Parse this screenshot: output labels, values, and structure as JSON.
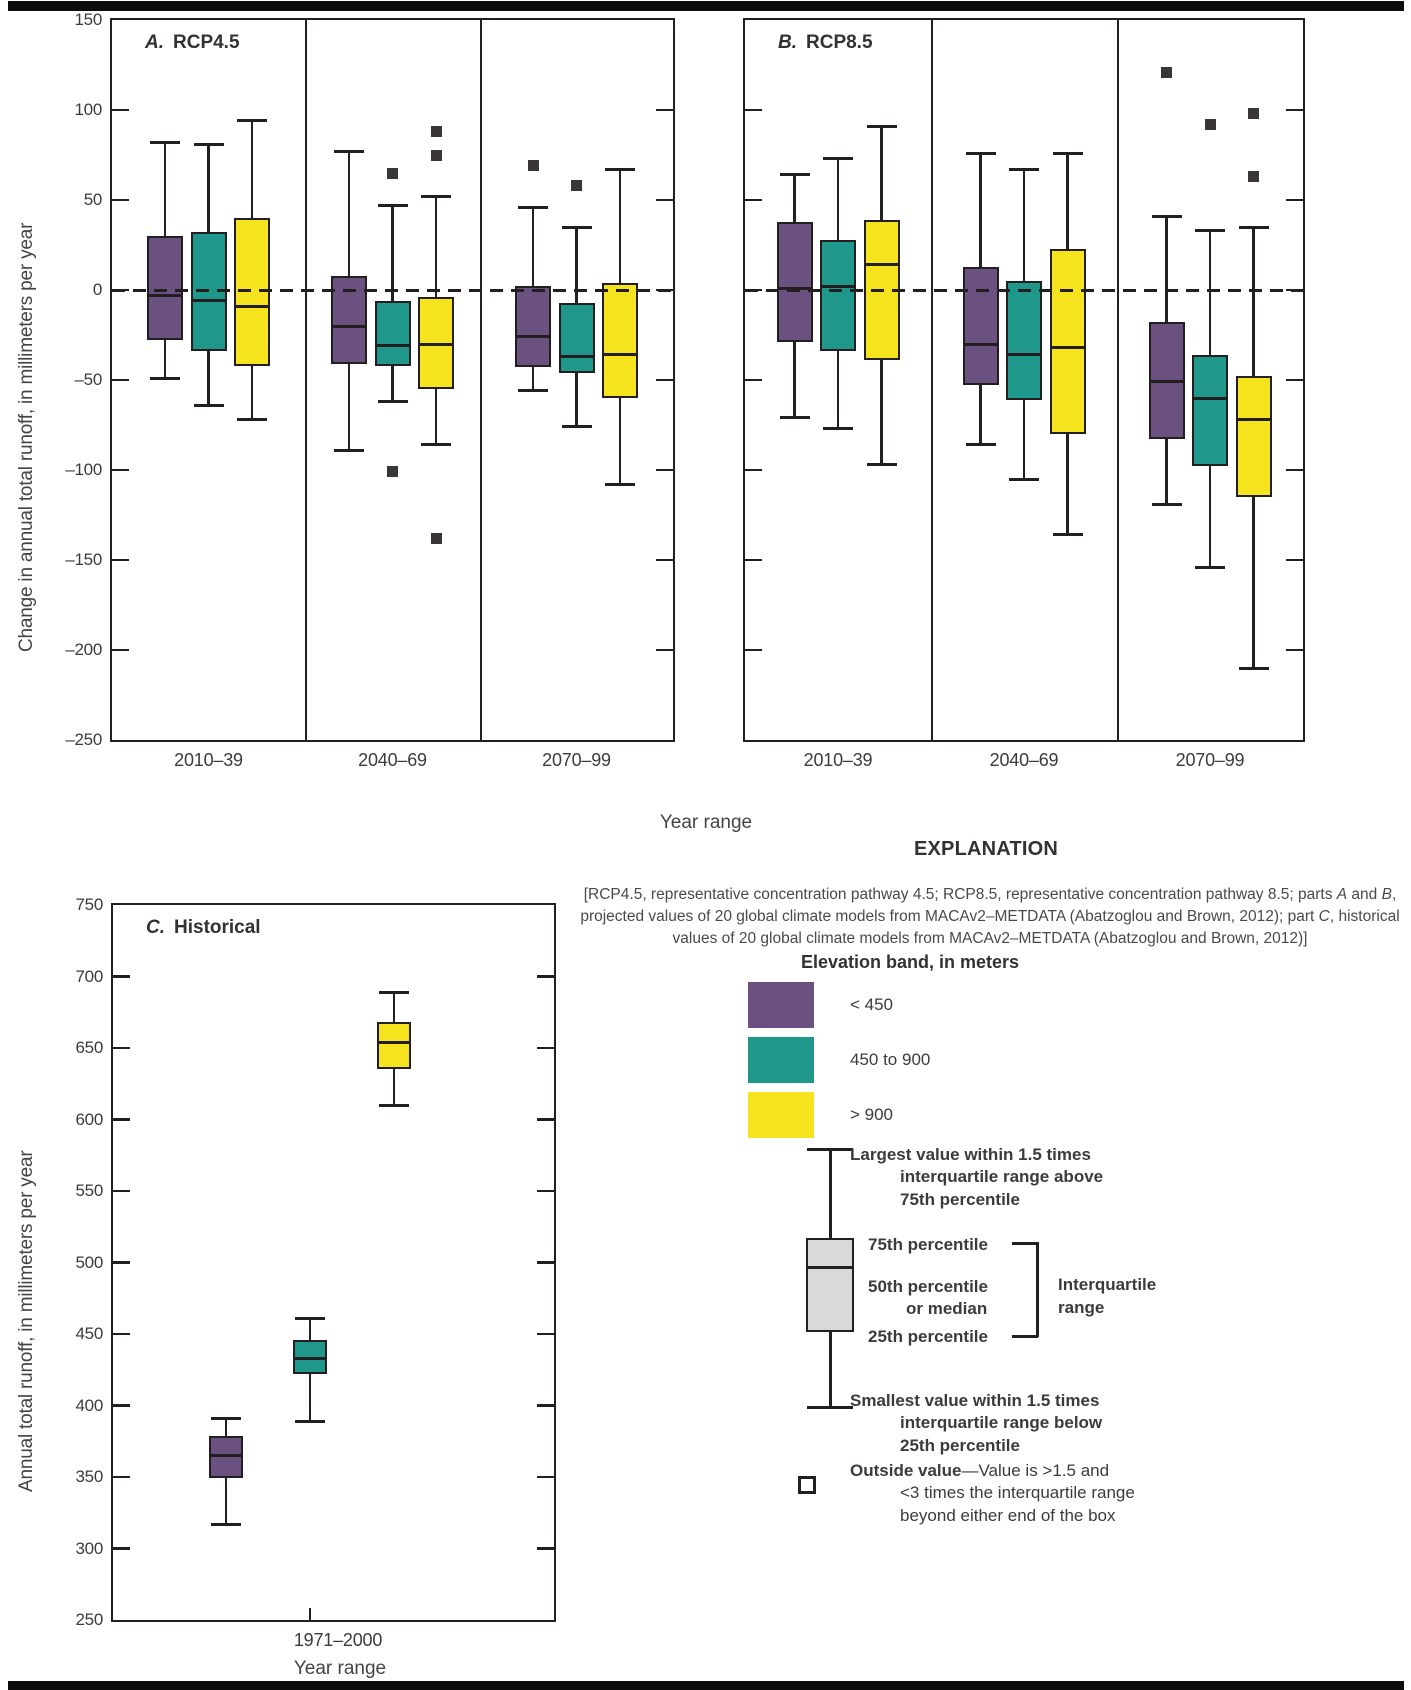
{
  "colors": {
    "purple": "#6b517f",
    "teal": "#1f988b",
    "yellow": "#f5e41d",
    "ink": "#231f20",
    "outlier": "#3a3637",
    "legend_box_fill": "#d8d9da"
  },
  "axes": {
    "top_y_label": "Change in annual total runoff, in millimeters per year",
    "bottom_y_label": "Annual total runoff, in millimeters per year",
    "top_x_label": "Year range",
    "bottom_x_label": "Year range"
  },
  "chart_data": [
    {
      "id": "A",
      "type": "boxplot",
      "title_letter": "A.",
      "title_text": "RCP4.5",
      "categories": [
        "2010–39",
        "2040–69",
        "2070–99"
      ],
      "ylim": [
        -250,
        150
      ],
      "y_tick_values": [
        150,
        100,
        50,
        0,
        -50,
        -100,
        -150,
        -200,
        -250
      ],
      "y_tick_labels": [
        "150",
        "100",
        "50",
        "0",
        "–50",
        "–100",
        "–150",
        "–200",
        "–250"
      ],
      "show_y_labels": true,
      "zero_line": true,
      "series": [
        {
          "name": "< 450",
          "color": "purple",
          "boxes": [
            {
              "low": -49,
              "q1": -28,
              "median": -3,
              "q3": 30,
              "high": 82,
              "outliers": []
            },
            {
              "low": -89,
              "q1": -41,
              "median": -20,
              "q3": 8,
              "high": 77,
              "outliers": []
            },
            {
              "low": -56,
              "q1": -43,
              "median": -26,
              "q3": 2,
              "high": 46,
              "outliers": [
                69
              ]
            }
          ]
        },
        {
          "name": "450 to 900",
          "color": "teal",
          "boxes": [
            {
              "low": -64,
              "q1": -34,
              "median": -6,
              "q3": 32,
              "high": 81,
              "outliers": []
            },
            {
              "low": -62,
              "q1": -42,
              "median": -31,
              "q3": -6,
              "high": 47,
              "outliers": [
                65,
                -101
              ]
            },
            {
              "low": -76,
              "q1": -46,
              "median": -37,
              "q3": -7,
              "high": 35,
              "outliers": [
                58
              ]
            }
          ]
        },
        {
          "name": "> 900",
          "color": "yellow",
          "boxes": [
            {
              "low": -72,
              "q1": -42,
              "median": -9,
              "q3": 40,
              "high": 94,
              "outliers": []
            },
            {
              "low": -86,
              "q1": -55,
              "median": -30,
              "q3": -4,
              "high": 52,
              "outliers": [
                88,
                75,
                -138
              ]
            },
            {
              "low": -108,
              "q1": -60,
              "median": -36,
              "q3": 4,
              "high": 67,
              "outliers": []
            }
          ]
        }
      ]
    },
    {
      "id": "B",
      "type": "boxplot",
      "title_letter": "B.",
      "title_text": "RCP8.5",
      "categories": [
        "2010–39",
        "2040–69",
        "2070–99"
      ],
      "ylim": [
        -250,
        150
      ],
      "y_tick_values": [
        150,
        100,
        50,
        0,
        -50,
        -100,
        -150,
        -200,
        -250
      ],
      "y_tick_labels": [
        "150",
        "100",
        "50",
        "0",
        "–50",
        "–100",
        "–150",
        "–200",
        "–250"
      ],
      "show_y_labels": false,
      "zero_line": true,
      "series": [
        {
          "name": "< 450",
          "color": "purple",
          "boxes": [
            {
              "low": -71,
              "q1": -29,
              "median": 1,
              "q3": 38,
              "high": 64,
              "outliers": []
            },
            {
              "low": -86,
              "q1": -53,
              "median": -30,
              "q3": 13,
              "high": 76,
              "outliers": []
            },
            {
              "low": -119,
              "q1": -83,
              "median": -51,
              "q3": -18,
              "high": 41,
              "outliers": [
                121
              ]
            }
          ]
        },
        {
          "name": "450 to 900",
          "color": "teal",
          "boxes": [
            {
              "low": -77,
              "q1": -34,
              "median": 2,
              "q3": 28,
              "high": 73,
              "outliers": []
            },
            {
              "low": -105,
              "q1": -61,
              "median": -36,
              "q3": 5,
              "high": 67,
              "outliers": []
            },
            {
              "low": -154,
              "q1": -98,
              "median": -60,
              "q3": -36,
              "high": 33,
              "outliers": [
                92
              ]
            }
          ]
        },
        {
          "name": "> 900",
          "color": "yellow",
          "boxes": [
            {
              "low": -97,
              "q1": -39,
              "median": 14,
              "q3": 39,
              "high": 91,
              "outliers": []
            },
            {
              "low": -136,
              "q1": -80,
              "median": -32,
              "q3": 23,
              "high": 76,
              "outliers": []
            },
            {
              "low": -210,
              "q1": -115,
              "median": -72,
              "q3": -48,
              "high": 35,
              "outliers": [
                98,
                63
              ]
            }
          ]
        }
      ]
    },
    {
      "id": "C",
      "type": "boxplot",
      "title_letter": "C.",
      "title_text": "Historical",
      "categories": [
        "1971–2000"
      ],
      "ylim": [
        250,
        750
      ],
      "y_tick_values": [
        750,
        700,
        650,
        600,
        550,
        500,
        450,
        400,
        350,
        300,
        250
      ],
      "y_tick_labels": [
        "750",
        "700",
        "650",
        "600",
        "550",
        "500",
        "450",
        "400",
        "350",
        "300",
        "250"
      ],
      "show_y_labels": true,
      "zero_line": false,
      "series": [
        {
          "name": "< 450",
          "color": "purple",
          "boxes": [
            {
              "low": 317,
              "q1": 349,
              "median": 365,
              "q3": 379,
              "high": 391,
              "outliers": []
            }
          ]
        },
        {
          "name": "450 to 900",
          "color": "teal",
          "boxes": [
            {
              "low": 389,
              "q1": 422,
              "median": 433,
              "q3": 446,
              "high": 461,
              "outliers": []
            }
          ]
        },
        {
          "name": "> 900",
          "color": "yellow",
          "boxes": [
            {
              "low": 610,
              "q1": 635,
              "median": 654,
              "q3": 668,
              "high": 689,
              "outliers": []
            }
          ]
        }
      ]
    }
  ],
  "explanation": {
    "title": "EXPLANATION",
    "note_segments": [
      {
        "text": "[RCP4.5, representative concentration pathway 4.5; RCP8.5, representative concentration pathway 8.5; parts "
      },
      {
        "text": "A",
        "italic": true
      },
      {
        "text": " and "
      },
      {
        "text": "B",
        "italic": true
      },
      {
        "text": ", projected values of 20 global climate models from MACAv2–METDATA (Abatzoglou and Brown, 2012); part "
      },
      {
        "text": "C",
        "italic": true
      },
      {
        "text": ", historical values of 20 global climate models from MACAv2–METDATA (Abatzoglou and Brown, 2012)]"
      }
    ],
    "elevation_header": "Elevation band, in meters",
    "elevation_items": [
      {
        "label": "< 450",
        "color": "purple"
      },
      {
        "label": "450 to 900",
        "color": "teal"
      },
      {
        "label": "> 900",
        "color": "yellow"
      }
    ],
    "largest_lines": [
      "Largest value within 1.5 times",
      "interquartile range above",
      "75th percentile"
    ],
    "p75": "75th percentile",
    "p50_lines": [
      "50th percentile",
      "or median"
    ],
    "p25": "25th percentile",
    "iqr_lines": [
      "Interquartile",
      "range"
    ],
    "smallest_lines": [
      "Smallest value within 1.5 times",
      "interquartile range below",
      "25th percentile"
    ],
    "outside_bold": "Outside value",
    "outside_line1_rest": "—Value is >1.5 and",
    "outside_lines": [
      "<3 times the interquartile range",
      "beyond either end of the box"
    ]
  }
}
